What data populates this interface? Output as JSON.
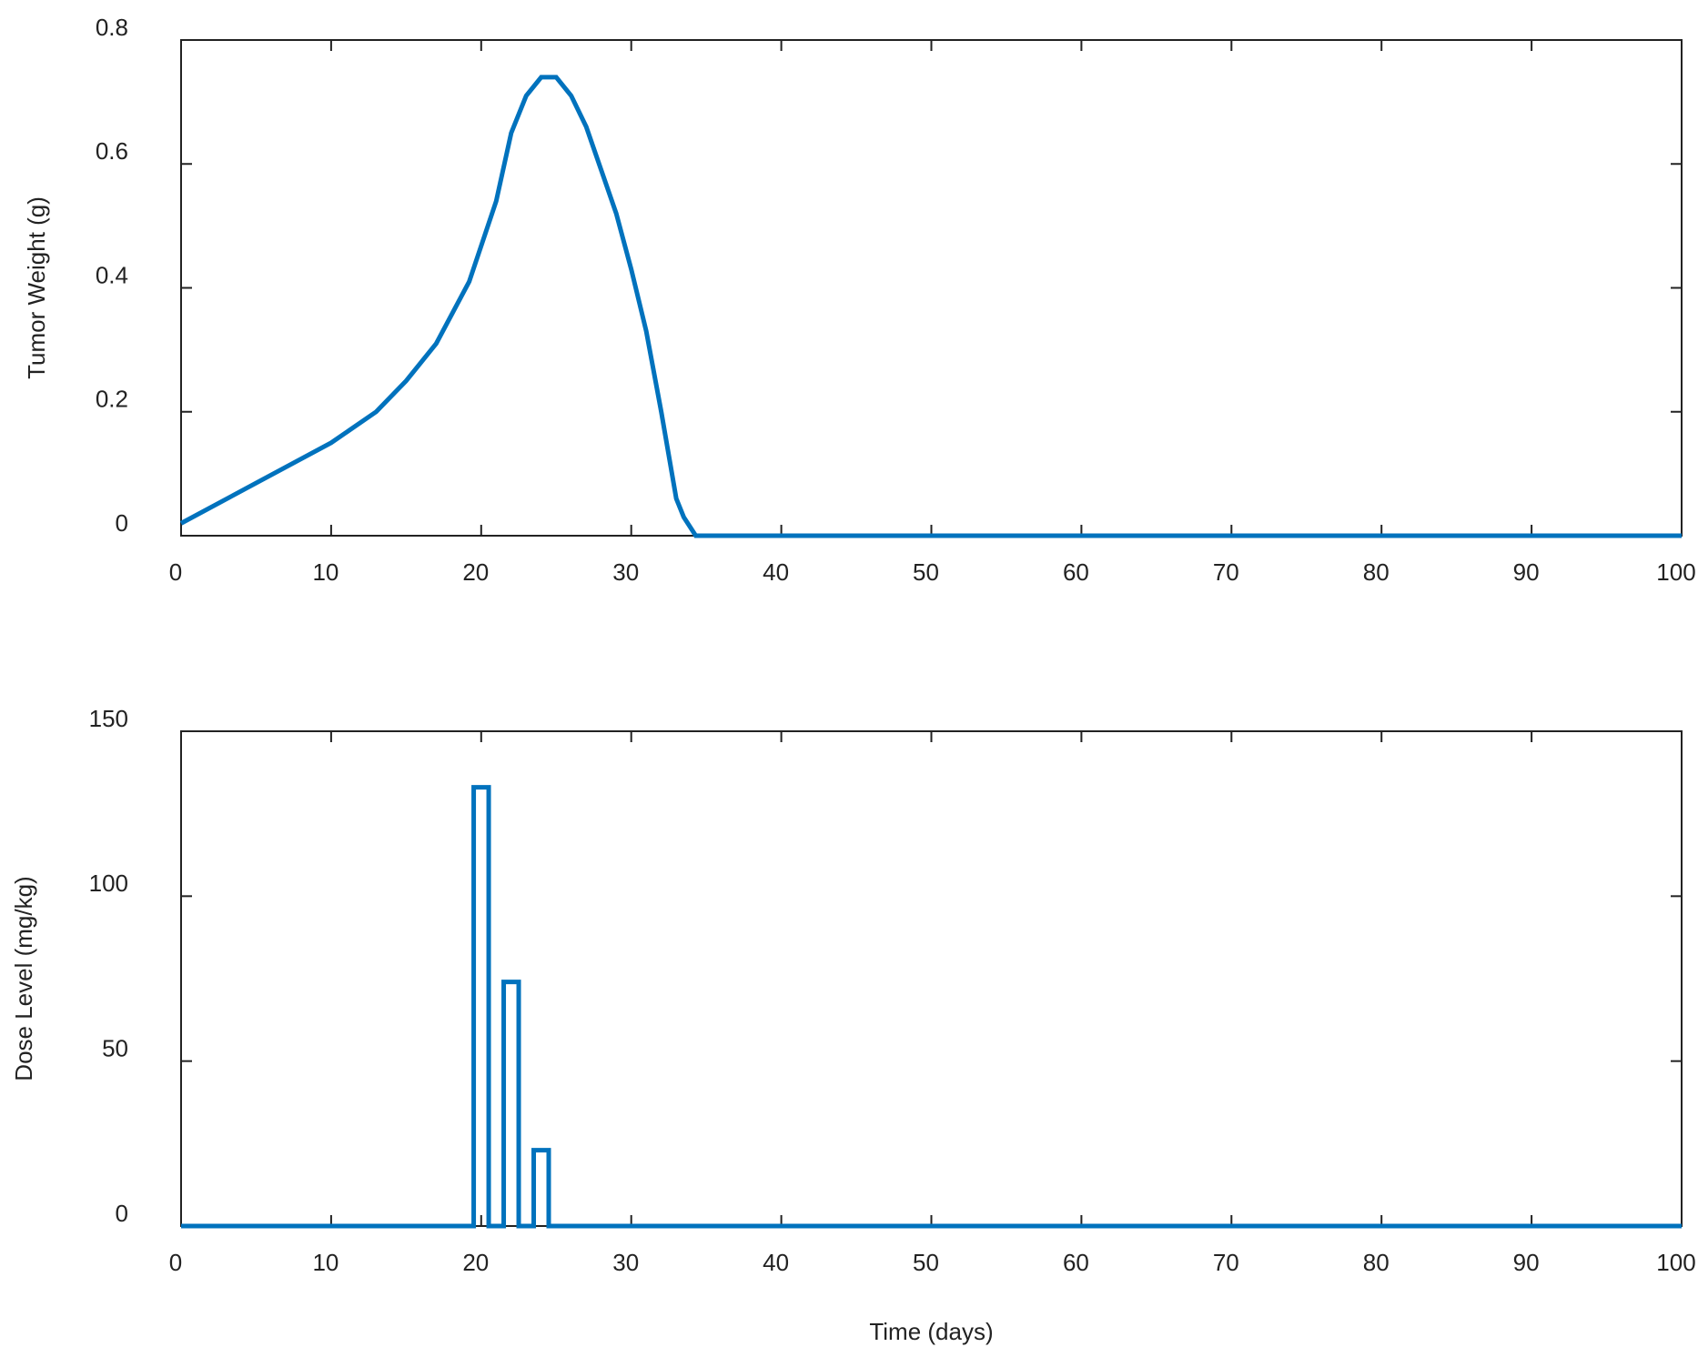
{
  "chart_data": [
    {
      "type": "line",
      "ylabel": "Tumor Weight (g)",
      "x": [
        0,
        5,
        10,
        13,
        15,
        17,
        19.2,
        21,
        22,
        23,
        24,
        25,
        26,
        27,
        28,
        29,
        30,
        31,
        32,
        33,
        33.5,
        34.3,
        40,
        100
      ],
      "series": [
        {
          "name": "Tumor Weight",
          "color": "#0072bd",
          "values": [
            0.02,
            0.085,
            0.15,
            0.2,
            0.25,
            0.31,
            0.41,
            0.54,
            0.65,
            0.71,
            0.74,
            0.74,
            0.71,
            0.66,
            0.59,
            0.52,
            0.43,
            0.33,
            0.2,
            0.06,
            0.03,
            0,
            0,
            0
          ]
        }
      ],
      "xlim": [
        0,
        100
      ],
      "xticks": [
        0,
        10,
        20,
        30,
        40,
        50,
        60,
        70,
        80,
        90,
        100
      ],
      "ylim": [
        0,
        0.8
      ],
      "yticks": [
        0,
        0.2,
        0.4,
        0.6,
        0.8
      ]
    },
    {
      "type": "line",
      "ylabel": "Dose Level (mg/kg)",
      "xlabel": "Time (days)",
      "x": [
        0,
        19.5,
        19.5,
        20.5,
        20.5,
        21.5,
        21.5,
        22.5,
        22.5,
        23.5,
        23.5,
        24.5,
        24.5,
        100
      ],
      "series": [
        {
          "name": "Dose Level",
          "color": "#0072bd",
          "values": [
            0,
            0,
            133,
            133,
            0,
            0,
            74,
            74,
            0,
            0,
            23,
            23,
            0,
            0
          ]
        }
      ],
      "xlim": [
        0,
        100
      ],
      "xticks": [
        0,
        10,
        20,
        30,
        40,
        50,
        60,
        70,
        80,
        90,
        100
      ],
      "ylim": [
        0,
        150
      ],
      "yticks": [
        0,
        50,
        100,
        150
      ]
    }
  ]
}
